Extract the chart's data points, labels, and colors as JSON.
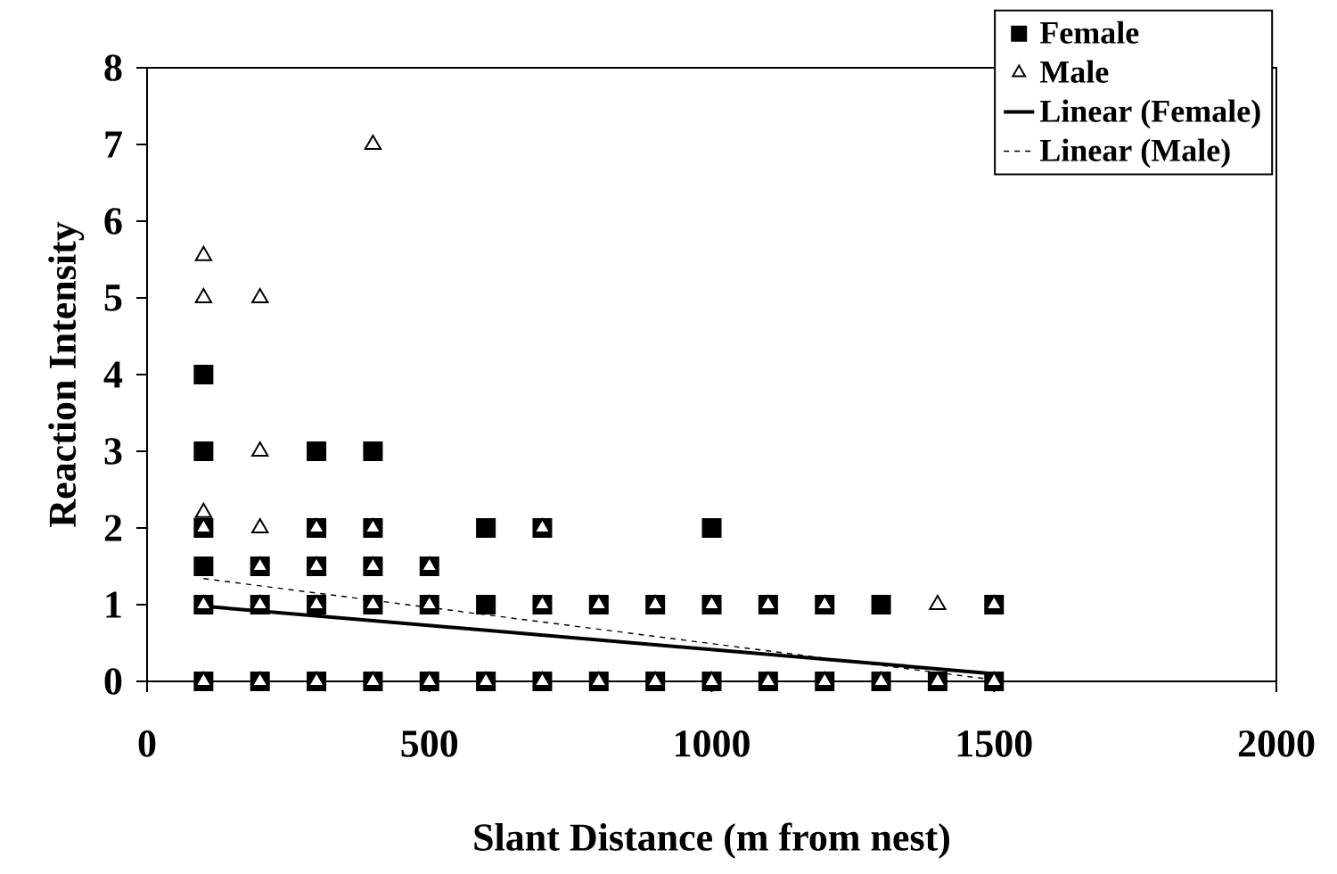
{
  "chart_data": {
    "type": "scatter",
    "xlabel": "Slant Distance (m from nest)",
    "ylabel": "Reaction Intensity",
    "xlim": [
      0,
      2000
    ],
    "ylim": [
      0,
      8
    ],
    "xticks": [
      0,
      500,
      1000,
      1500,
      2000
    ],
    "yticks": [
      0,
      1,
      2,
      3,
      4,
      5,
      6,
      7,
      8
    ],
    "grid": false,
    "legend": "top right",
    "series": [
      {
        "name": "Female",
        "marker": "square",
        "color": "#000000",
        "x": [
          100,
          100,
          100,
          100,
          100,
          100,
          200,
          200,
          200,
          300,
          300,
          300,
          300,
          300,
          400,
          400,
          400,
          400,
          400,
          500,
          500,
          500,
          600,
          600,
          600,
          700,
          700,
          700,
          800,
          800,
          900,
          900,
          1000,
          1000,
          1000,
          1100,
          1100,
          1200,
          1200,
          1300,
          1300,
          1400,
          1500,
          1500
        ],
        "values": [
          4,
          3,
          2,
          1.5,
          1,
          0,
          1.5,
          1,
          0,
          3,
          2,
          1.5,
          1,
          0,
          3,
          2,
          1.5,
          1,
          0,
          1.5,
          1,
          0,
          2,
          1,
          0,
          2,
          1,
          0,
          1,
          0,
          1,
          0,
          2,
          1,
          0,
          1,
          0,
          1,
          0,
          1,
          0,
          0,
          1,
          0
        ]
      },
      {
        "name": "Male",
        "marker": "triangle",
        "color": "#000000",
        "x": [
          100,
          100,
          100,
          100,
          100,
          100,
          200,
          200,
          200,
          200,
          200,
          200,
          300,
          300,
          300,
          300,
          400,
          400,
          400,
          400,
          400,
          500,
          500,
          500,
          600,
          700,
          700,
          700,
          800,
          800,
          900,
          900,
          1000,
          1000,
          1100,
          1100,
          1200,
          1200,
          1300,
          1400,
          1400,
          1500,
          1500
        ],
        "values": [
          5.55,
          5,
          2.2,
          2,
          1,
          0,
          5,
          3,
          2,
          1.5,
          1,
          0,
          2,
          1.5,
          1,
          0,
          7,
          2,
          1.5,
          1,
          0,
          1.5,
          1,
          0,
          0,
          2,
          1,
          0,
          1,
          0,
          1,
          0,
          1,
          0,
          1,
          0,
          1,
          0,
          0,
          1,
          0,
          1,
          0
        ]
      },
      {
        "name": "Linear (Female)",
        "type": "line",
        "line_style": "solid",
        "color": "#000000",
        "x": [
          100,
          1500
        ],
        "values": [
          0.98,
          0.1
        ]
      },
      {
        "name": "Linear (Male)",
        "type": "line",
        "line_style": "dashed",
        "color": "#000000",
        "x": [
          100,
          1500
        ],
        "values": [
          1.34,
          0.02
        ]
      }
    ]
  }
}
